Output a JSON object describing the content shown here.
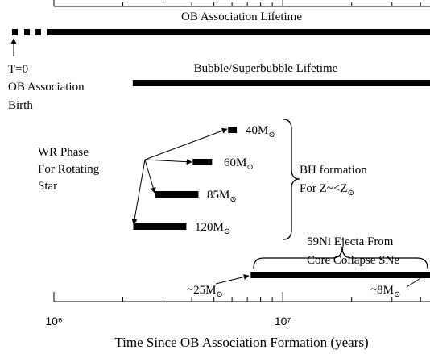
{
  "chart_data": {
    "type": "timeline",
    "x_label": "Time Since OB Association Formation (years)",
    "xscale": "log",
    "xlim": [
      1000000,
      44000000
    ],
    "xticks": [
      {
        "value": 1000000,
        "label": "10⁶"
      },
      {
        "value": 10000000,
        "label": "10⁷"
      }
    ],
    "minor_xticks": [
      2000000,
      3000000,
      4000000,
      5000000,
      6000000,
      7000000,
      8000000,
      9000000,
      20000000,
      30000000,
      40000000
    ],
    "color": "#000000",
    "bars": [
      {
        "name": "OB Association Lifetime",
        "start": 1000000,
        "end": 44000000
      },
      {
        "name": "Bubble/Superbubble Lifetime",
        "start": 2210000,
        "end": 44000000
      },
      {
        "name": "40M",
        "sub": "⊙",
        "start": 5770000,
        "end": 6300000
      },
      {
        "name": "60M",
        "sub": "⊙",
        "start": 4040000,
        "end": 4910000
      },
      {
        "name": "85M",
        "sub": "⊙",
        "start": 2770000,
        "end": 4280000
      },
      {
        "name": "120M",
        "sub": "⊙",
        "start": 2220000,
        "end": 3790000
      },
      {
        "start": 7240000,
        "end": 44000000
      }
    ],
    "annotations": {
      "t0": [
        "T=0",
        "OB Association",
        "Birth"
      ],
      "wr": [
        "WR Phase",
        "For Rotating",
        "Star"
      ],
      "bh": {
        "line1": "BH formation",
        "line2": "For Z~<Z",
        "sub": "⊙"
      },
      "ni": [
        "59Ni Ejecta From",
        "Core Collapse SNe"
      ],
      "m25": {
        "text": "~25M",
        "sub": "⊙"
      },
      "m8": {
        "text": "~8M",
        "sub": "⊙"
      }
    }
  }
}
